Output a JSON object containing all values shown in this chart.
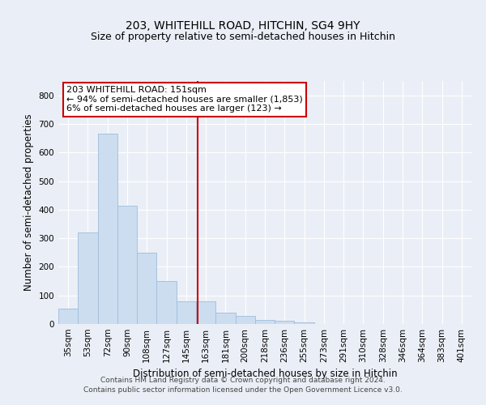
{
  "title": "203, WHITEHILL ROAD, HITCHIN, SG4 9HY",
  "subtitle": "Size of property relative to semi-detached houses in Hitchin",
  "xlabel": "Distribution of semi-detached houses by size in Hitchin",
  "ylabel": "Number of semi-detached properties",
  "categories": [
    "35sqm",
    "53sqm",
    "72sqm",
    "90sqm",
    "108sqm",
    "127sqm",
    "145sqm",
    "163sqm",
    "181sqm",
    "200sqm",
    "218sqm",
    "236sqm",
    "255sqm",
    "273sqm",
    "291sqm",
    "310sqm",
    "328sqm",
    "346sqm",
    "364sqm",
    "383sqm",
    "401sqm"
  ],
  "values": [
    55,
    320,
    665,
    413,
    248,
    150,
    80,
    80,
    40,
    27,
    15,
    10,
    6,
    0,
    0,
    0,
    0,
    0,
    0,
    0,
    0
  ],
  "bar_color": "#ccddf0",
  "bar_edge_color": "#a0bcda",
  "vline_x_index": 6.6,
  "vline_color": "#cc0000",
  "annotation_line1": "203 WHITEHILL ROAD: 151sqm",
  "annotation_line2": "← 94% of semi-detached houses are smaller (1,853)",
  "annotation_line3": "6% of semi-detached houses are larger (123) →",
  "annotation_box_color": "#ffffff",
  "annotation_box_edge": "#cc0000",
  "ylim": [
    0,
    850
  ],
  "yticks": [
    0,
    100,
    200,
    300,
    400,
    500,
    600,
    700,
    800
  ],
  "background_color": "#eaeff7",
  "plot_bg_color": "#eaeff7",
  "footer1": "Contains HM Land Registry data © Crown copyright and database right 2024.",
  "footer2": "Contains public sector information licensed under the Open Government Licence v3.0.",
  "title_fontsize": 10,
  "subtitle_fontsize": 9,
  "xlabel_fontsize": 8.5,
  "ylabel_fontsize": 8.5,
  "tick_fontsize": 7.5,
  "annotation_fontsize": 8,
  "footer_fontsize": 6.5
}
